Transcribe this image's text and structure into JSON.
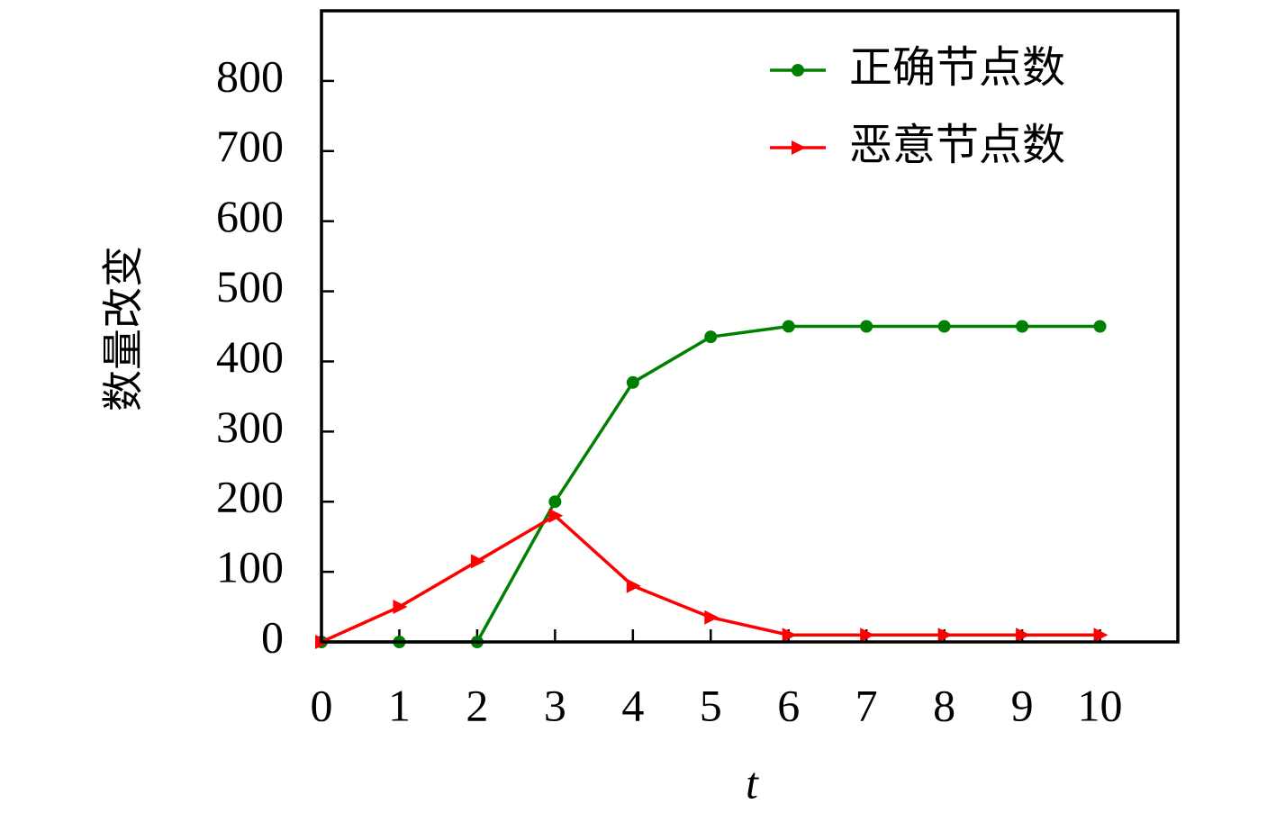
{
  "chart_data": {
    "type": "line",
    "x_label": "t",
    "y_label": "数量改变",
    "x": [
      0,
      1,
      2,
      3,
      4,
      5,
      6,
      7,
      8,
      9,
      10
    ],
    "series": [
      {
        "name": "正确节点数",
        "color": "#008000",
        "marker": "circle",
        "values": [
          0,
          0,
          0,
          200,
          370,
          435,
          450,
          450,
          450,
          450,
          450
        ]
      },
      {
        "name": "恶意节点数",
        "color": "#ff0000",
        "marker": "triangle-right",
        "values": [
          0,
          50,
          115,
          180,
          80,
          35,
          10,
          10,
          10,
          10,
          10
        ]
      }
    ],
    "xlim": [
      0,
      11
    ],
    "ylim": [
      0,
      900
    ],
    "xticks": [
      0,
      1,
      2,
      3,
      4,
      5,
      6,
      7,
      8,
      9,
      10
    ],
    "yticks": [
      0,
      100,
      200,
      300,
      400,
      500,
      600,
      700,
      800
    ],
    "legend": "upper right",
    "grid": false
  }
}
